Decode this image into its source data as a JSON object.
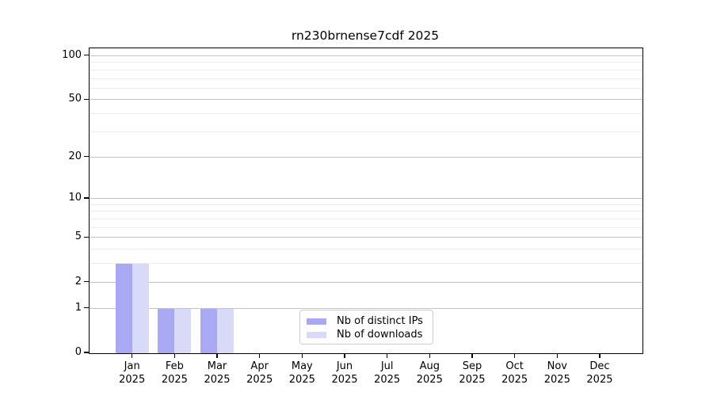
{
  "chart_data": {
    "type": "bar",
    "title": "rn230brnense7cdf 2025",
    "categories": [
      "Jan",
      "Feb",
      "Mar",
      "Apr",
      "May",
      "Jun",
      "Jul",
      "Aug",
      "Sep",
      "Oct",
      "Nov",
      "Dec"
    ],
    "category_year": "2025",
    "series": [
      {
        "name": "Nb of distinct IPs",
        "color": "#a9a9f3",
        "values": [
          3,
          1,
          1,
          0,
          0,
          0,
          0,
          0,
          0,
          0,
          0,
          0
        ]
      },
      {
        "name": "Nb of downloads",
        "color": "#d9d9f8",
        "values": [
          3,
          1,
          1,
          0,
          0,
          0,
          0,
          0,
          0,
          0,
          0,
          0
        ]
      }
    ],
    "yscale": "log1p",
    "ylim": [
      0,
      113
    ],
    "ytick_values": [
      0,
      1,
      2,
      5,
      10,
      20,
      50,
      100
    ],
    "ytick_labels": [
      "0",
      "1",
      "2",
      "5",
      "10",
      "20",
      "50",
      "100"
    ],
    "minor_grid_values": [
      3,
      4,
      6,
      7,
      8,
      9,
      30,
      40,
      60,
      70,
      80,
      90
    ],
    "grid": "horizontal",
    "legend_position": "inside-bottom-center",
    "xlabel": "",
    "ylabel": ""
  },
  "colors": {
    "bar_distinct_ips": "#a9a9f3",
    "bar_downloads": "#d9d9f8",
    "grid_major": "#c3c3c3",
    "grid_minor": "#ebebeb",
    "axis_frame": "#000000",
    "legend_border": "#cccccc",
    "background": "#ffffff"
  }
}
